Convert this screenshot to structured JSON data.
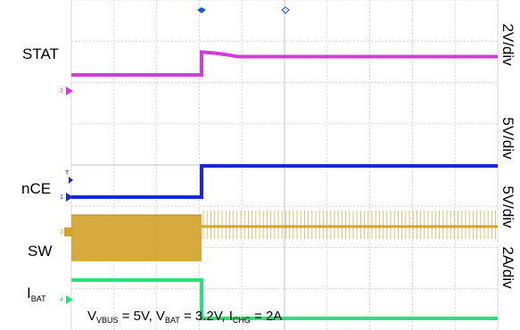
{
  "chart_data": {
    "type": "line",
    "title": "",
    "grid": true,
    "divisions": {
      "x": 10,
      "y": 8
    },
    "series": [
      {
        "name": "STAT",
        "name_sub": "",
        "scale": "2V/div",
        "color": "#d23cd8",
        "marker": "2",
        "before": 0.7,
        "after": 1.5,
        "overshoot": 0.2
      },
      {
        "name": "nCE",
        "name_sub": "",
        "scale": "5V/div",
        "color": "#1a28d8",
        "marker": "1",
        "before": 0.0,
        "after": 1.3
      },
      {
        "name": "SW",
        "name_sub": "",
        "scale": "5V/div",
        "color": "#d4a32e",
        "marker": "3",
        "before_switching": true,
        "after_switching": true
      },
      {
        "name": "I",
        "name_sub": "BAT",
        "scale": "2A/div",
        "color": "#22e47a",
        "marker": "4",
        "before": 0.0,
        "after": -1.9
      }
    ],
    "annotation": {
      "parts": [
        {
          "text": "V",
          "sub": false
        },
        {
          "text": "VBUS",
          "sub": true
        },
        {
          "text": " = 5V, V",
          "sub": false
        },
        {
          "text": "BAT",
          "sub": true
        },
        {
          "text": " = 3.2V, I",
          "sub": false
        },
        {
          "text": "CHG",
          "sub": true
        },
        {
          "text": " = 2A",
          "sub": false
        }
      ]
    }
  }
}
